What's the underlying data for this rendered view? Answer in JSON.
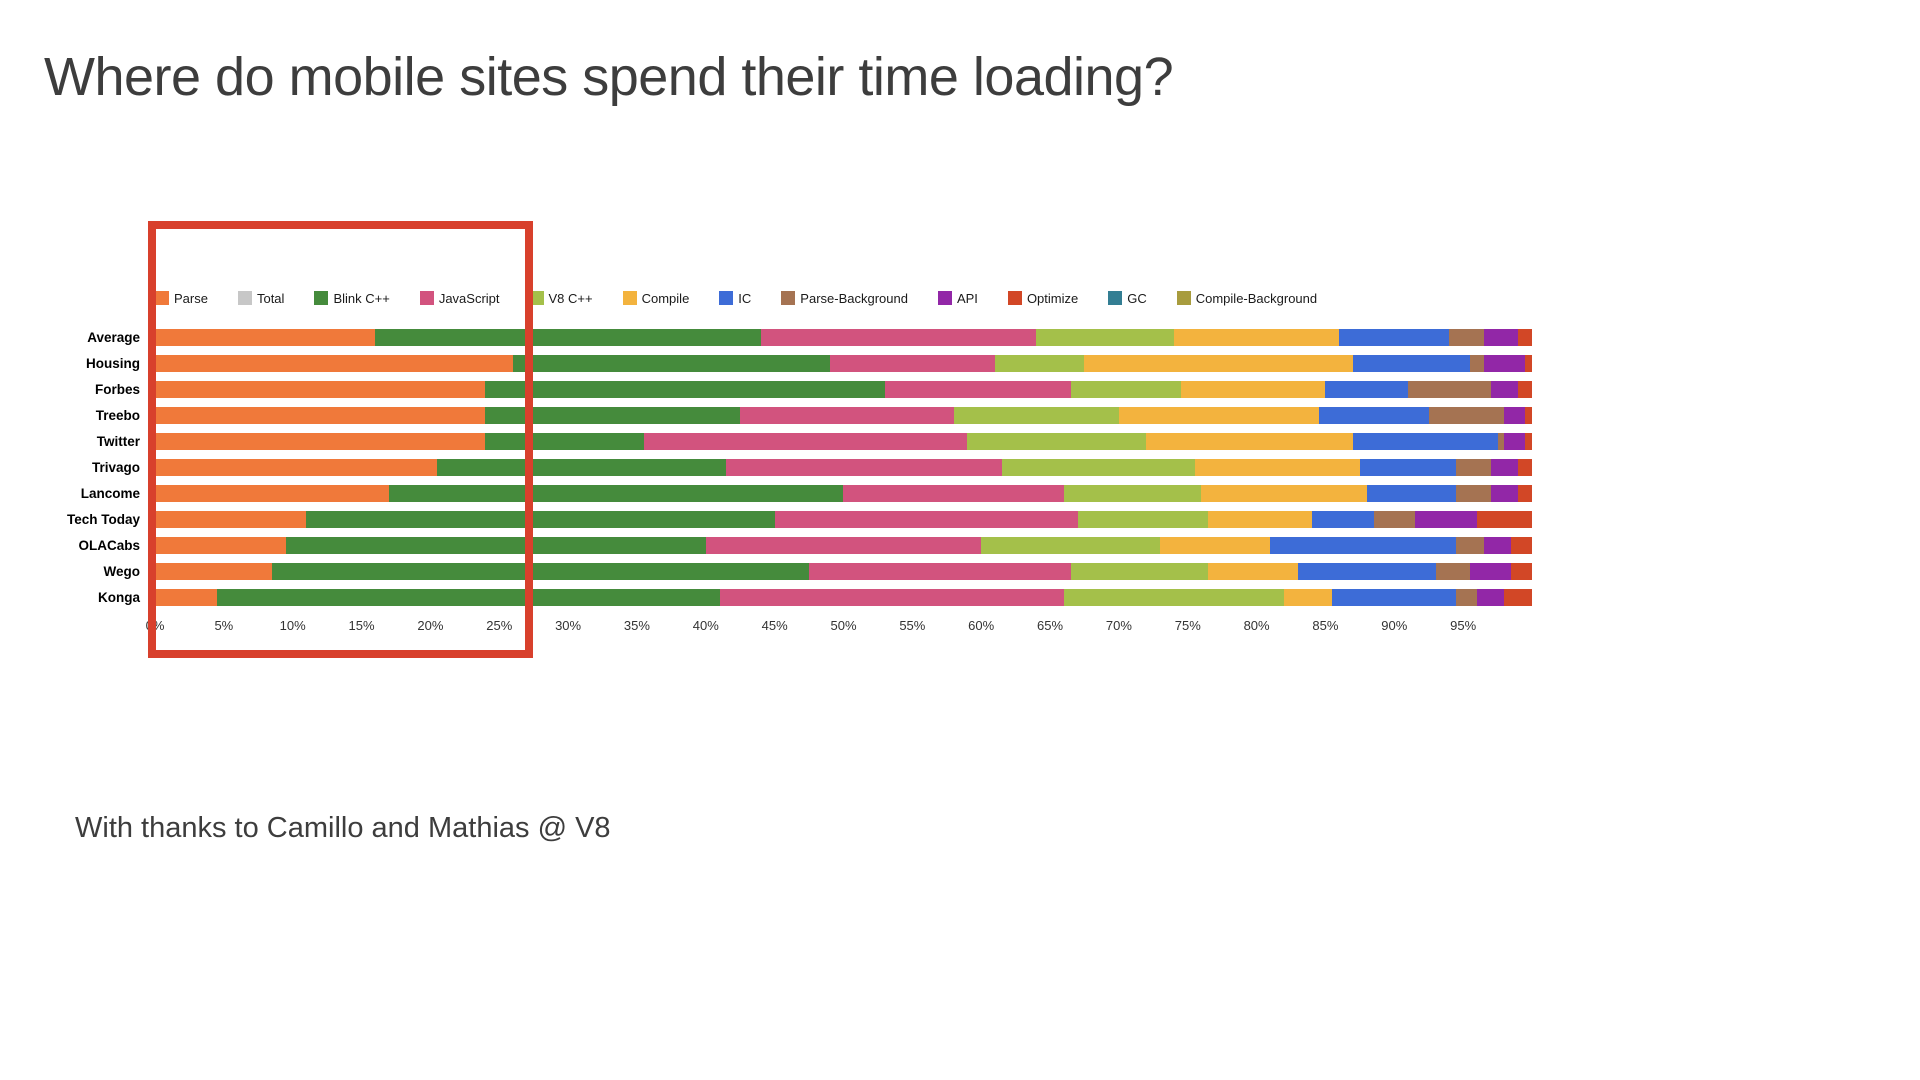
{
  "slide": {
    "title": "Where do mobile sites spend their time loading?",
    "credit": "With thanks to Camillo and Mathias @ V8"
  },
  "chart_data": {
    "type": "bar",
    "variant": "horizontal-stacked",
    "unit": "%",
    "xlim": [
      0,
      100
    ],
    "grid": false,
    "legend_position": "top",
    "x_ticks": [
      "0%",
      "5%",
      "10%",
      "15%",
      "20%",
      "25%",
      "30%",
      "35%",
      "40%",
      "45%",
      "50%",
      "55%",
      "60%",
      "65%",
      "70%",
      "75%",
      "80%",
      "85%",
      "90%",
      "95%"
    ],
    "categories": [
      "Average",
      "Housing",
      "Forbes",
      "Treebo",
      "Twitter",
      "Trivago",
      "Lancome",
      "Tech Today",
      "OLACabs",
      "Wego",
      "Konga"
    ],
    "series": [
      {
        "name": "Parse",
        "color": "#f0793a",
        "values": [
          16,
          26,
          24,
          24,
          24,
          20.5,
          17,
          11,
          9.5,
          8.5,
          4.5
        ]
      },
      {
        "name": "Total",
        "color": "#c7c7c7",
        "values": [
          0,
          0,
          0,
          0,
          0,
          0,
          0,
          0,
          0,
          0,
          0
        ]
      },
      {
        "name": "Blink C++",
        "color": "#458b3c",
        "values": [
          28,
          23,
          29,
          18.5,
          11.5,
          21,
          33,
          34,
          30.5,
          39,
          36.5
        ]
      },
      {
        "name": "JavaScript",
        "color": "#d2537e",
        "values": [
          20,
          12,
          13.5,
          15.5,
          23.5,
          20,
          16,
          22,
          20,
          19,
          25
        ]
      },
      {
        "name": "V8 C++",
        "color": "#a4c04a",
        "values": [
          10,
          6.5,
          8,
          12,
          13,
          14,
          10,
          9.5,
          13,
          10,
          16
        ]
      },
      {
        "name": "Compile",
        "color": "#f3b33e",
        "values": [
          12,
          19.5,
          10.5,
          14.5,
          15,
          12,
          12,
          7.5,
          8,
          6.5,
          3.5
        ]
      },
      {
        "name": "IC",
        "color": "#3d6cd7",
        "values": [
          8,
          8.5,
          6,
          8,
          10.5,
          7,
          6.5,
          4.5,
          13.5,
          10,
          9
        ]
      },
      {
        "name": "Parse-Background",
        "color": "#a57352",
        "values": [
          2.5,
          1,
          6,
          5.5,
          0.5,
          2.5,
          2.5,
          3,
          2,
          2.5,
          1.5
        ]
      },
      {
        "name": "API",
        "color": "#9227a7",
        "values": [
          2.5,
          3,
          2,
          1.5,
          1.5,
          2,
          2,
          4.5,
          2,
          3,
          2
        ]
      },
      {
        "name": "Optimize",
        "color": "#d24726",
        "values": [
          1,
          0.5,
          1,
          0.5,
          0.5,
          1,
          1,
          4,
          1.5,
          1.5,
          2
        ]
      },
      {
        "name": "GC",
        "color": "#337e93",
        "values": [
          0,
          0,
          0,
          0,
          0,
          0,
          0,
          0,
          0,
          0,
          0
        ]
      },
      {
        "name": "Compile-Background",
        "color": "#a89c3e",
        "values": [
          0,
          0,
          0,
          0,
          0,
          0,
          0,
          0,
          0,
          0,
          0
        ]
      }
    ],
    "annotation": {
      "highlight_box_color": "#d8402c",
      "highlight_range_percent": [
        0,
        27
      ]
    }
  }
}
